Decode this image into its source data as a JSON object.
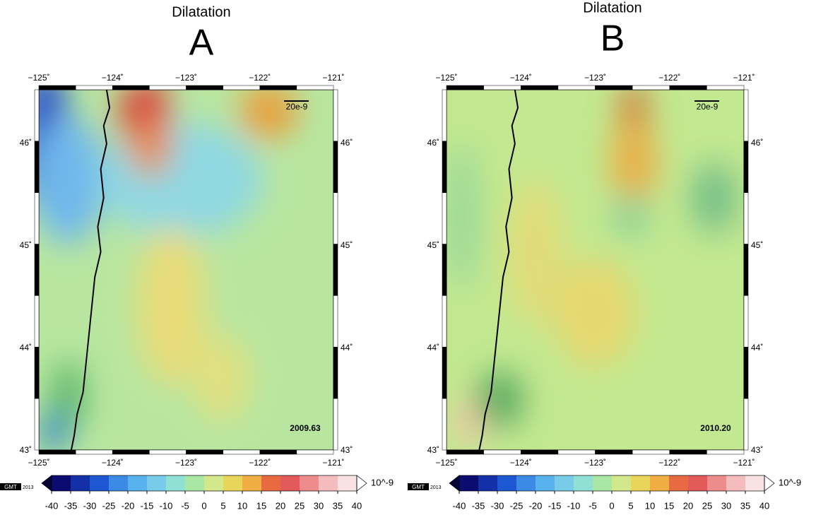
{
  "panels": [
    {
      "title": "Dilatation",
      "letter": "A",
      "lon_labels": [
        "−125˚",
        "−124˚",
        "−123˚",
        "−122˚",
        "−121˚"
      ],
      "lat_labels": [
        "46˚",
        "45˚",
        "44˚",
        "43˚"
      ],
      "scale_label": "20e-9",
      "epoch": "2009.63"
    },
    {
      "title": "Dilatation",
      "letter": "B",
      "lon_labels": [
        "−125˚",
        "−124˚",
        "−123˚",
        "−122˚",
        "−121˚"
      ],
      "lat_labels": [
        "46˚",
        "45˚",
        "44˚",
        "43˚"
      ],
      "scale_label": "20e-9",
      "epoch": "2010.20"
    }
  ],
  "colorbar": {
    "logo": "GMT",
    "year": "2013",
    "ticks": [
      -40,
      -35,
      -30,
      -25,
      -20,
      -15,
      -10,
      -5,
      0,
      5,
      10,
      15,
      20,
      25,
      30,
      35,
      40
    ],
    "colors": [
      "#0b0b70",
      "#1430a8",
      "#1d58d2",
      "#3b8ae6",
      "#58b2ee",
      "#78ccea",
      "#90e0d4",
      "#a8e8a4",
      "#d2e88a",
      "#e8d65a",
      "#f0ae42",
      "#e86a40",
      "#e25a5a",
      "#ee8c8c",
      "#f4bcbc",
      "#f9e2e2"
    ],
    "under_color": "#05053a",
    "over_color": "#ffffff",
    "unit": "10^-9"
  }
}
